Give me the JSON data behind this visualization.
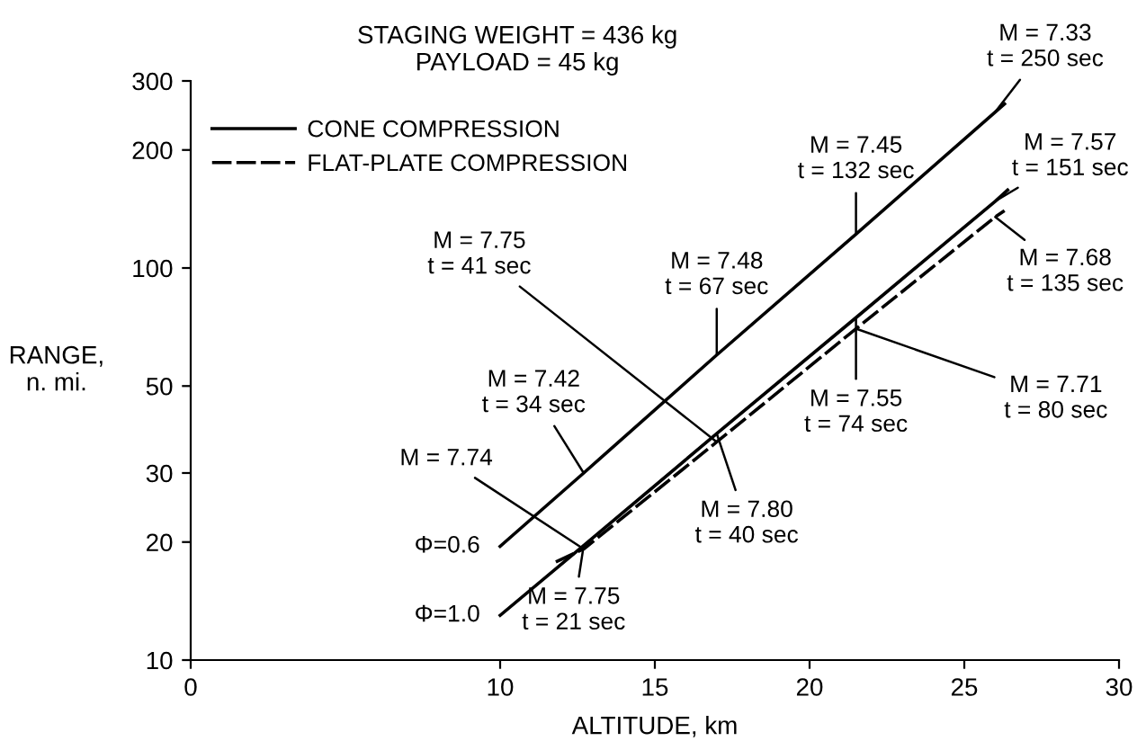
{
  "chart_data": {
    "type": "line",
    "title": "STAGING WEIGHT = 436 kg\nPAYLOAD = 45 kg",
    "xlabel": "ALTITUDE, km",
    "ylabel": "RANGE,\nn. mi.",
    "log": "y",
    "xlim": [
      0,
      30
    ],
    "xticks": [
      0,
      10,
      15,
      20,
      25,
      30
    ],
    "ylim": [
      10,
      300
    ],
    "yticks": [
      10,
      20,
      30,
      50,
      100,
      200,
      300
    ],
    "grid": false,
    "legend": "top left",
    "marker": "none",
    "series": [
      {
        "name": "CONE COMPRESSION",
        "color": "#000000",
        "line_style": "solid",
        "x": [
          10,
          12.7,
          17,
          21.5,
          26,
          26.3
        ],
        "values": [
          19.5,
          30,
          60,
          122,
          250,
          262
        ]
      },
      {
        "color": "#000000",
        "line_style": "solid",
        "x": [
          10,
          12.7,
          17,
          21.5,
          26,
          26.4
        ],
        "values": [
          13,
          19.6,
          37.8,
          74.7,
          148,
          158
        ]
      },
      {
        "name": "FLAT-PLATE COMPRESSION",
        "color": "#000000",
        "line_style": "dashed",
        "x": [
          11.8,
          12.7,
          17,
          21.5,
          26,
          26.3
        ],
        "values": [
          17.8,
          19.2,
          36,
          70,
          135,
          140
        ]
      }
    ],
    "annotations": [
      {
        "text": "M = 7.42\nt = 34 sec",
        "x": 12.7,
        "y": 30
      },
      {
        "text": "M = 7.48\nt = 67 sec",
        "x": 17,
        "y": 60
      },
      {
        "text": "M = 7.45\nt = 132 sec",
        "x": 21.5,
        "y": 122
      },
      {
        "text": "M = 7.33\nt = 250 sec",
        "x": 26,
        "y": 250
      },
      {
        "text": "M = 7.75\nt = 21 sec",
        "x": 12.7,
        "y": 19.6
      },
      {
        "text": "M = 7.80\nt = 40 sec",
        "x": 17,
        "y": 37.8
      },
      {
        "text": "M = 7.55\nt = 74 sec",
        "x": 21.5,
        "y": 74.7
      },
      {
        "text": "M = 7.57\nt = 151 sec",
        "x": 26,
        "y": 148
      },
      {
        "text": "M = 7.74",
        "x": 12.7,
        "y": 19.2
      },
      {
        "text": "M = 7.75\nt = 41 sec",
        "x": 17,
        "y": 36
      },
      {
        "text": "M = 7.71\nt = 80 sec",
        "x": 21.5,
        "y": 70
      },
      {
        "text": "M = 7.68\nt = 135 sec",
        "x": 26,
        "y": 135
      },
      {
        "text": "Φ=0.6",
        "x": 10,
        "y": 19.5
      },
      {
        "text": "Φ=1.0",
        "x": 10,
        "y": 13
      }
    ]
  }
}
